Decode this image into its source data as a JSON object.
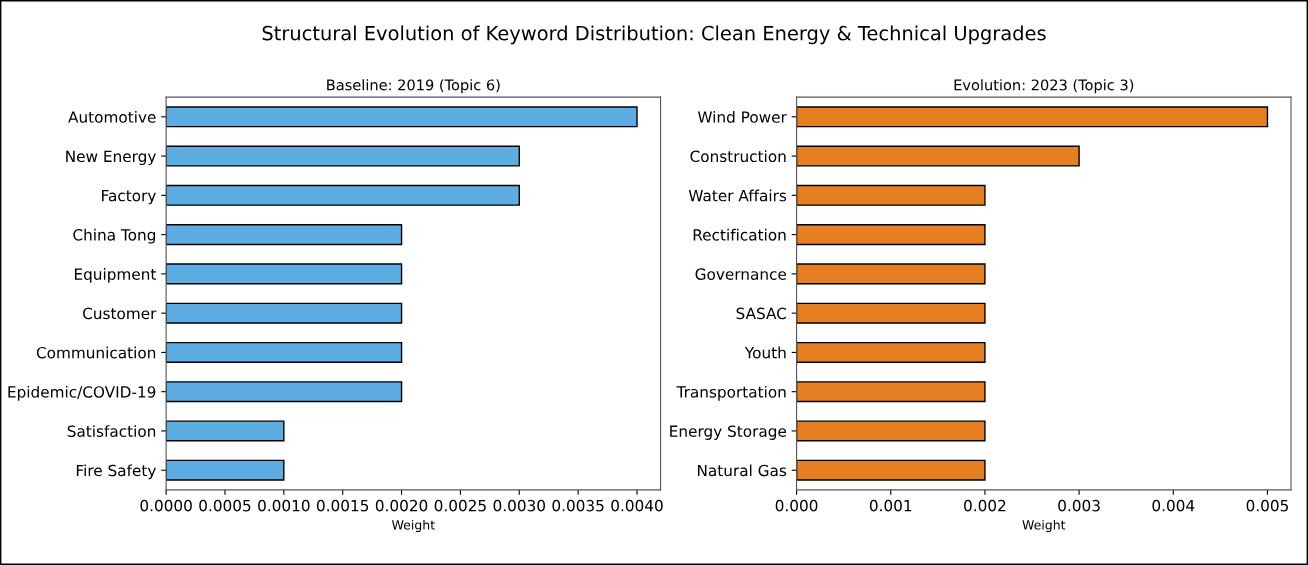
{
  "chart_data": [
    {
      "type": "bar",
      "orientation": "horizontal",
      "title": "Baseline: 2019 (Topic 6)",
      "xlabel": "Weight",
      "annotations": [
        "Structural Evolution of Keyword Distribution: Clean Energy & Technical Upgrades"
      ],
      "categories": [
        "Automotive",
        "New Energy",
        "Factory",
        "China Tong",
        "Equipment",
        "Customer",
        "Communication",
        "Epidemic/COVID-19",
        "Satisfaction",
        "Fire Safety"
      ],
      "values": [
        0.004,
        0.003,
        0.003,
        0.002,
        0.002,
        0.002,
        0.002,
        0.002,
        0.001,
        0.001
      ],
      "color": "#5dade2",
      "xlim": [
        0,
        0.0042
      ],
      "xticks": [
        {
          "value": 0,
          "label": "0.0000"
        },
        {
          "value": 0.0005,
          "label": "0.0005"
        },
        {
          "value": 0.001,
          "label": "0.0010"
        },
        {
          "value": 0.0015,
          "label": "0.0015"
        },
        {
          "value": 0.002,
          "label": "0.0020"
        },
        {
          "value": 0.0025,
          "label": "0.0025"
        },
        {
          "value": 0.003,
          "label": "0.0030"
        },
        {
          "value": 0.0035,
          "label": "0.0035"
        },
        {
          "value": 0.004,
          "label": "0.0040"
        }
      ],
      "grid": false
    },
    {
      "type": "bar",
      "orientation": "horizontal",
      "title": "Evolution: 2023 (Topic 3)",
      "xlabel": "Weight",
      "categories": [
        "Wind Power",
        "Construction",
        "Water Affairs",
        "Rectification",
        "Governance",
        "SASAC",
        "Youth",
        "Transportation",
        "Energy Storage",
        "Natural Gas"
      ],
      "values": [
        0.005,
        0.003,
        0.002,
        0.002,
        0.002,
        0.002,
        0.002,
        0.002,
        0.002,
        0.002
      ],
      "color": "#e67e22",
      "xlim": [
        0,
        0.00525
      ],
      "xticks": [
        {
          "value": 0,
          "label": "0.000"
        },
        {
          "value": 0.001,
          "label": "0.001"
        },
        {
          "value": 0.002,
          "label": "0.002"
        },
        {
          "value": 0.003,
          "label": "0.003"
        },
        {
          "value": 0.004,
          "label": "0.004"
        },
        {
          "value": 0.005,
          "label": "0.005"
        }
      ],
      "grid": false
    }
  ]
}
